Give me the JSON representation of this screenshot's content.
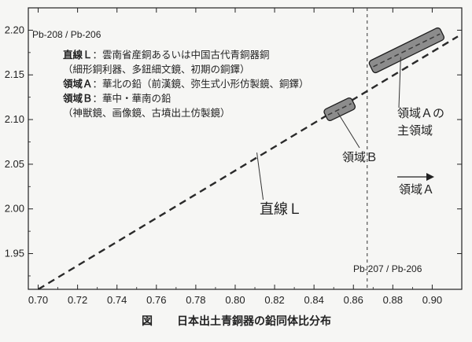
{
  "chart_data": {
    "type": "scatter",
    "xlabel": "Pb-207 / Pb-206",
    "ylabel": "Pb-208 / Pb-206",
    "xlim": [
      0.695,
      0.915
    ],
    "ylim": [
      1.91,
      2.225
    ],
    "x_ticks": [
      "0.70",
      "0.72",
      "0.74",
      "0.76",
      "0.78",
      "0.80",
      "0.82",
      "0.84",
      "0.86",
      "0.88",
      "0.90"
    ],
    "y_ticks": [
      "1.95",
      "2.00",
      "2.05",
      "2.10",
      "2.15",
      "2.20"
    ],
    "line_L": {
      "points": [
        [
          0.7,
          1.903
        ],
        [
          0.913,
          2.193
        ]
      ],
      "style": "dashed"
    },
    "boundary_x": 0.867,
    "region_A": {
      "from": [
        0.869,
        2.158
      ],
      "to": [
        0.905,
        2.197
      ]
    },
    "region_B": {
      "from": [
        0.846,
        2.104
      ],
      "to": [
        0.86,
        2.119
      ]
    },
    "annotations": {
      "line_L": "直線Ｌ",
      "region_B": "領域Ｂ",
      "region_A_main_1": "領域Ａの",
      "region_A_main_2": "主領域",
      "arrow_A": "領域Ａ"
    },
    "legend_notes": [
      {
        "key": "直線Ｌ",
        "text": "：雲南省産銅あるいは中国古代青銅器銅"
      },
      {
        "key": "",
        "text": "（細形銅利器、多鈕細文鏡、初期の銅鐸）"
      },
      {
        "key": "領域Ａ",
        "text": "：華北の鉛（前漢鏡、弥生式小形仿製鏡、銅鐸）"
      },
      {
        "key": "領域Ｂ",
        "text": "：華中・華南の鉛"
      },
      {
        "key": "",
        "text": "（神獣鏡、画像鏡、古墳出土仿製鏡）"
      }
    ]
  },
  "caption": {
    "figure_label": "図",
    "title": "日本出土青銅器の鉛同体比分布"
  }
}
